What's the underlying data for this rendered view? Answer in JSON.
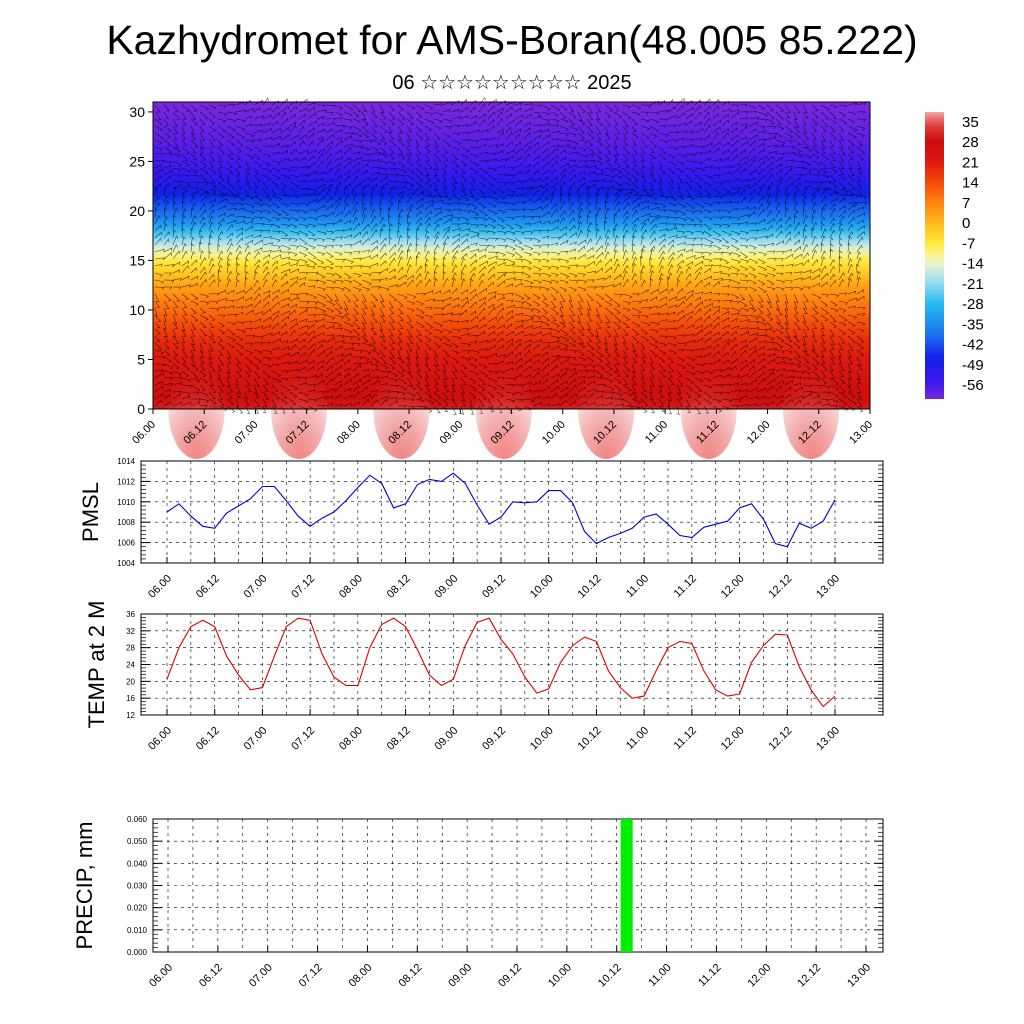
{
  "title": "Kazhydromet for AMS-Boran(48.005 85.222)",
  "subtitle": {
    "day": "06",
    "month_glyphs": "☆☆☆☆☆☆☆☆☆",
    "year": "2025"
  },
  "chart_data": [
    {
      "type": "heatmap",
      "name": "vertical-cross-section",
      "xlabel": "",
      "ylabel": "",
      "x_ticks": [
        "06.00",
        "06.12",
        "07.00",
        "07.12",
        "08.00",
        "08.12",
        "09.00",
        "09.12",
        "10.00",
        "10.12",
        "11.00",
        "11.12",
        "12.00",
        "12.12",
        "13.00"
      ],
      "y_ticks": [
        0,
        5,
        10,
        15,
        20,
        25,
        30
      ],
      "ylim": [
        0,
        31
      ],
      "colorbar_labels": [
        "35",
        "28",
        "21",
        "14",
        "7",
        "0",
        "-7",
        "-14",
        "-21",
        "-28",
        "-35",
        "-42",
        "-49",
        "-56"
      ],
      "colorbar_range": [
        -60,
        38
      ],
      "temperature_profile": [
        {
          "height": 0,
          "value": 30
        },
        {
          "height": 3,
          "value": 24
        },
        {
          "height": 7,
          "value": 18
        },
        {
          "height": 10,
          "value": 10
        },
        {
          "height": 12.5,
          "value": 3
        },
        {
          "height": 15,
          "value": -7
        },
        {
          "height": 17,
          "value": -20
        },
        {
          "height": 19,
          "value": -35
        },
        {
          "height": 21.5,
          "value": -45
        },
        {
          "height": 24,
          "value": -54
        },
        {
          "height": 27,
          "value": -57
        },
        {
          "height": 31,
          "value": -60
        }
      ],
      "colors": {
        "warm": "#d00000",
        "mid": "#ffee44",
        "cold": "#1010ee",
        "top": "#7722dd"
      }
    },
    {
      "type": "line",
      "name": "pmsl",
      "ylabel": "PMSL",
      "ylim": [
        1004,
        1014
      ],
      "y_ticks": [
        "1004",
        "1006",
        "1008",
        "1010",
        "1012",
        "1014"
      ],
      "x_ticks": [
        "06.00",
        "06.12",
        "07.00",
        "07.12",
        "08.00",
        "08.12",
        "09.00",
        "09.12",
        "10.00",
        "10.12",
        "11.00",
        "11.12",
        "12.00",
        "12.12",
        "13.00"
      ],
      "color": "#0000dd",
      "values": [
        1009.0,
        1009.8,
        1008.6,
        1007.6,
        1007.4,
        1008.9,
        1009.6,
        1010.3,
        1011.5,
        1011.5,
        1010.1,
        1008.6,
        1007.6,
        1008.4,
        1009.0,
        1010.1,
        1011.4,
        1012.6,
        1011.8,
        1009.4,
        1009.8,
        1011.7,
        1012.2,
        1012.0,
        1012.8,
        1011.8,
        1009.7,
        1007.8,
        1008.5,
        1010.0,
        1009.9,
        1010.0,
        1011.1,
        1011.1,
        1009.9,
        1007.1,
        1005.9,
        1006.5,
        1006.9,
        1007.4,
        1008.5,
        1008.8,
        1007.8,
        1006.7,
        1006.5,
        1007.5,
        1007.8,
        1008.1,
        1009.4,
        1009.8,
        1008.3,
        1005.9,
        1005.6,
        1007.9,
        1007.4,
        1008.1,
        1010.2
      ]
    },
    {
      "type": "line",
      "name": "temp-2m",
      "ylabel": "TEMP at 2 M",
      "ylim": [
        12,
        36
      ],
      "y_ticks": [
        "12",
        "16",
        "20",
        "24",
        "28",
        "32",
        "36"
      ],
      "x_ticks": [
        "06.00",
        "06.12",
        "07.00",
        "07.12",
        "08.00",
        "08.12",
        "09.00",
        "09.12",
        "10.00",
        "10.12",
        "11.00",
        "11.12",
        "12.00",
        "12.12",
        "13.00"
      ],
      "color": "#dd0000",
      "values": [
        20.5,
        28.0,
        33.0,
        34.5,
        33.0,
        26.0,
        21.5,
        18.0,
        18.5,
        26.0,
        33.0,
        35.0,
        34.5,
        26.5,
        21.0,
        19.0,
        19.0,
        28.0,
        33.5,
        35.0,
        33.0,
        27.5,
        21.5,
        19.0,
        20.5,
        28.5,
        34.0,
        35.0,
        30.0,
        26.5,
        21.0,
        17.2,
        18.2,
        24.5,
        28.5,
        30.5,
        29.5,
        22.5,
        18.5,
        16.0,
        16.5,
        22.5,
        28.0,
        29.5,
        29.0,
        22.5,
        18.0,
        16.5,
        17.0,
        24.5,
        28.5,
        31.2,
        31.0,
        23.5,
        18.0,
        14.0,
        16.5
      ]
    },
    {
      "type": "bar",
      "name": "precip",
      "ylabel": "PRECIP, mm",
      "ylim": [
        0,
        0.06
      ],
      "y_ticks": [
        "0.000",
        "0.010",
        "0.020",
        "0.030",
        "0.040",
        "0.050",
        "0.060"
      ],
      "x_ticks": [
        "06.00",
        "06.12",
        "07.00",
        "07.12",
        "08.00",
        "08.12",
        "09.00",
        "09.12",
        "10.00",
        "10.12",
        "11.00",
        "11.12",
        "12.00",
        "12.12",
        "13.00"
      ],
      "color": "#00ee00",
      "bars": [
        {
          "x": 9.2,
          "value": 0.06
        }
      ]
    }
  ]
}
